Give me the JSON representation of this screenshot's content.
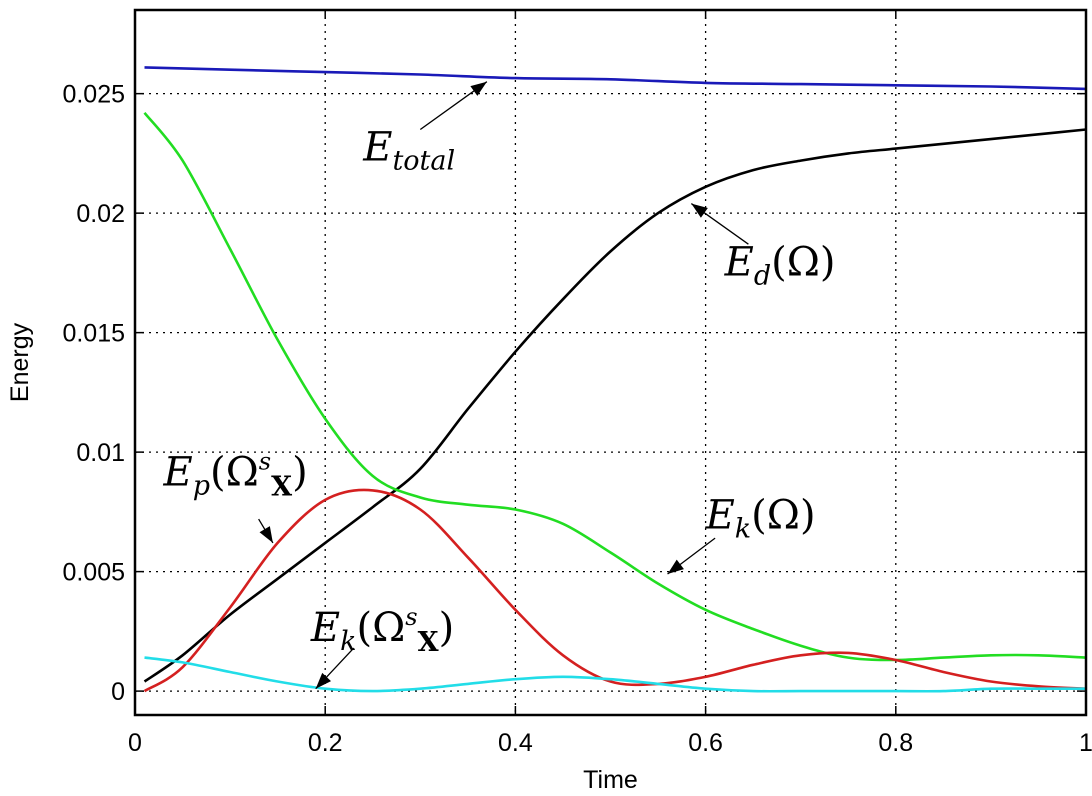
{
  "chart_data": {
    "type": "line",
    "title": "",
    "xlabel": "Time",
    "ylabel": "Energy",
    "xlim": [
      0,
      1
    ],
    "ylim": [
      -0.001,
      0.0285
    ],
    "xticks": [
      0,
      0.2,
      0.4,
      0.6,
      0.8,
      1
    ],
    "xtick_labels": [
      "0",
      "0.2",
      "0.4",
      "0.6",
      "0.8",
      "1"
    ],
    "yticks": [
      0,
      0.005,
      0.01,
      0.015,
      0.02,
      0.025
    ],
    "ytick_labels": [
      "0",
      "0.005",
      "0.01",
      "0.015",
      "0.02",
      "0.025"
    ],
    "grid": true,
    "series": [
      {
        "key": "total",
        "color": "#1a1ab8",
        "x": [
          0.01,
          0.1,
          0.2,
          0.3,
          0.4,
          0.5,
          0.6,
          0.7,
          0.8,
          0.9,
          1.0
        ],
        "y": [
          0.0261,
          0.026,
          0.0259,
          0.0258,
          0.02565,
          0.0256,
          0.02545,
          0.0254,
          0.02535,
          0.0253,
          0.0252
        ]
      },
      {
        "key": "ed",
        "color": "#000000",
        "x": [
          0.01,
          0.05,
          0.1,
          0.15,
          0.2,
          0.25,
          0.3,
          0.35,
          0.4,
          0.45,
          0.5,
          0.55,
          0.6,
          0.65,
          0.7,
          0.75,
          0.8,
          0.85,
          0.9,
          0.95,
          1.0
        ],
        "y": [
          0.0004,
          0.0015,
          0.0032,
          0.0047,
          0.0062,
          0.0077,
          0.0093,
          0.0118,
          0.0142,
          0.0164,
          0.0184,
          0.02,
          0.0211,
          0.0218,
          0.0222,
          0.0225,
          0.0227,
          0.0229,
          0.0231,
          0.0233,
          0.0235
        ]
      },
      {
        "key": "ek",
        "color": "#22dd22",
        "x": [
          0.01,
          0.05,
          0.1,
          0.15,
          0.2,
          0.25,
          0.3,
          0.35,
          0.4,
          0.45,
          0.5,
          0.55,
          0.6,
          0.65,
          0.7,
          0.75,
          0.8,
          0.85,
          0.9,
          0.95,
          1.0
        ],
        "y": [
          0.0242,
          0.0222,
          0.0185,
          0.0147,
          0.0114,
          0.009,
          0.0081,
          0.0078,
          0.0076,
          0.007,
          0.0058,
          0.0045,
          0.0034,
          0.0026,
          0.0019,
          0.0014,
          0.0013,
          0.0014,
          0.0015,
          0.0015,
          0.0014
        ]
      },
      {
        "key": "ep",
        "color": "#d42020",
        "x": [
          0.01,
          0.05,
          0.1,
          0.15,
          0.2,
          0.25,
          0.3,
          0.35,
          0.4,
          0.45,
          0.5,
          0.55,
          0.6,
          0.65,
          0.7,
          0.75,
          0.8,
          0.85,
          0.9,
          0.95,
          1.0
        ],
        "y": [
          0.0,
          0.001,
          0.0035,
          0.0062,
          0.008,
          0.0084,
          0.0076,
          0.0056,
          0.0034,
          0.0015,
          0.0004,
          0.0003,
          0.0006,
          0.0011,
          0.0015,
          0.0016,
          0.0013,
          0.0008,
          0.0004,
          0.0002,
          0.0001
        ]
      },
      {
        "key": "eks",
        "color": "#22dde8",
        "x": [
          0.01,
          0.05,
          0.1,
          0.15,
          0.2,
          0.25,
          0.3,
          0.35,
          0.4,
          0.45,
          0.5,
          0.55,
          0.6,
          0.65,
          0.7,
          0.75,
          0.8,
          0.85,
          0.9,
          0.95,
          1.0
        ],
        "y": [
          0.0014,
          0.0012,
          0.0008,
          0.0004,
          0.0001,
          0.0,
          0.0001,
          0.0003,
          0.0005,
          0.0006,
          0.0005,
          0.0003,
          0.0001,
          0.0,
          0.0,
          0.0,
          0.0,
          0.0,
          0.0001,
          0.0001,
          0.0001
        ]
      }
    ],
    "annotations": {
      "total": {
        "base": "E",
        "sub": "total",
        "x": 0.24,
        "y": 0.0222,
        "arrow_from": [
          0.3,
          0.0235
        ],
        "arrow_to": [
          0.37,
          0.0255
        ]
      },
      "ed": {
        "base": "E",
        "sub": "d",
        "tail": "(Ω)",
        "x": 0.62,
        "y": 0.0174,
        "arrow_from": [
          0.645,
          0.0187
        ],
        "arrow_to": [
          0.585,
          0.0204
        ]
      },
      "ek": {
        "base": "E",
        "sub": "k",
        "tail": "(Ω)",
        "x": 0.6,
        "y": 0.0068,
        "arrow_from": [
          0.61,
          0.0064
        ],
        "arrow_to": [
          0.56,
          0.0049
        ]
      },
      "ep": {
        "base": "E",
        "sub": "p",
        "open": "(Ω",
        "sup": "s",
        "bold_sub": "X",
        "close": ")",
        "x": 0.03,
        "y": 0.0086,
        "arrow_from": [
          0.13,
          0.0072
        ],
        "arrow_to": [
          0.145,
          0.0062
        ]
      },
      "eks": {
        "base": "E",
        "sub": "k",
        "open": "(Ω",
        "sup": "s",
        "bold_sub": "X",
        "close": ")",
        "x": 0.185,
        "y": 0.0021,
        "arrow_from": [
          0.23,
          0.0018
        ],
        "arrow_to": [
          0.19,
          0.0001
        ]
      }
    }
  }
}
